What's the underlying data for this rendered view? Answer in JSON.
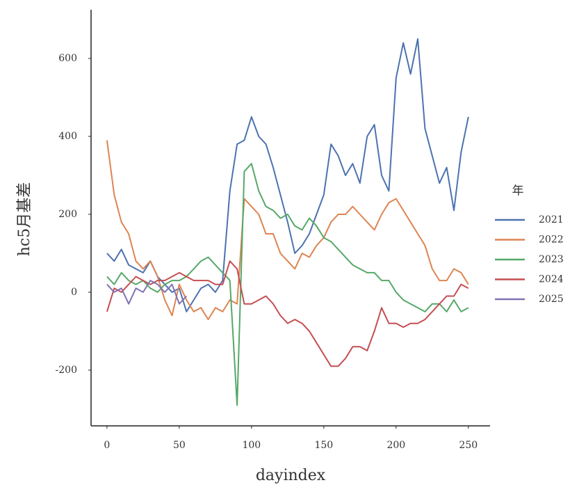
{
  "chart_data": {
    "type": "line",
    "x_label": "dayindex",
    "y_label": "hc5月基差",
    "legend_title": "年",
    "legend": "right",
    "grid": false,
    "xlim": [
      -11,
      265
    ],
    "ylim": [
      -343,
      725
    ],
    "xticks": [
      0,
      50,
      100,
      150,
      200,
      250
    ],
    "yticks": [
      -200,
      0,
      200,
      400,
      600
    ],
    "x": [
      0,
      5,
      10,
      15,
      20,
      25,
      30,
      35,
      40,
      45,
      50,
      55,
      60,
      65,
      70,
      75,
      80,
      85,
      90,
      95,
      100,
      105,
      110,
      115,
      120,
      125,
      130,
      135,
      140,
      145,
      150,
      155,
      160,
      165,
      170,
      175,
      180,
      185,
      190,
      195,
      200,
      205,
      210,
      215,
      220,
      225,
      230,
      235,
      240,
      245,
      250
    ],
    "series": [
      {
        "name": "2021",
        "color": "#4c72b0",
        "values": [
          100,
          80,
          110,
          70,
          60,
          50,
          80,
          40,
          20,
          0,
          10,
          -50,
          -20,
          10,
          20,
          0,
          30,
          260,
          380,
          390,
          450,
          400,
          380,
          320,
          250,
          180,
          100,
          120,
          150,
          200,
          250,
          380,
          350,
          300,
          330,
          280,
          400,
          430,
          300,
          260,
          550,
          640,
          560,
          650,
          420,
          350,
          280,
          320,
          210,
          360,
          450
        ]
      },
      {
        "name": "2022",
        "color": "#dd8452",
        "values": [
          390,
          250,
          180,
          150,
          80,
          60,
          80,
          40,
          -20,
          -60,
          20,
          -20,
          -50,
          -40,
          -70,
          -40,
          -50,
          -20,
          -30,
          240,
          220,
          200,
          150,
          150,
          100,
          80,
          60,
          100,
          90,
          120,
          140,
          180,
          200,
          200,
          220,
          200,
          180,
          160,
          200,
          230,
          240,
          210,
          180,
          150,
          120,
          60,
          30,
          30,
          60,
          50,
          20
        ]
      },
      {
        "name": "2023",
        "color": "#55a868",
        "values": [
          40,
          20,
          50,
          30,
          20,
          30,
          10,
          0,
          20,
          30,
          30,
          40,
          60,
          80,
          90,
          70,
          50,
          30,
          -290,
          310,
          330,
          260,
          220,
          210,
          190,
          200,
          170,
          160,
          190,
          170,
          140,
          130,
          110,
          90,
          70,
          60,
          50,
          50,
          30,
          30,
          0,
          -20,
          -30,
          -40,
          -50,
          -30,
          -30,
          -50,
          -20,
          -50,
          -40
        ]
      },
      {
        "name": "2024",
        "color": "#c44e52",
        "values": [
          -50,
          10,
          0,
          20,
          40,
          30,
          20,
          30,
          30,
          40,
          50,
          40,
          30,
          30,
          30,
          20,
          20,
          80,
          60,
          -30,
          -30,
          -20,
          -10,
          -30,
          -60,
          -80,
          -70,
          -80,
          -100,
          -130,
          -160,
          -190,
          -190,
          -170,
          -140,
          -140,
          -150,
          -100,
          -40,
          -80,
          -80,
          -90,
          -80,
          -80,
          -70,
          -50,
          -30,
          -10,
          -10,
          20,
          10
        ]
      },
      {
        "name": "2025",
        "color": "#8172b3",
        "values": [
          20,
          0,
          10,
          -30,
          10,
          0,
          30,
          20,
          0,
          20,
          -30,
          -10,
          null,
          null,
          null,
          null,
          null,
          null,
          null,
          null,
          null,
          null,
          null,
          null,
          null,
          null,
          null,
          null,
          null,
          null,
          null,
          null,
          null,
          null,
          null,
          null,
          null,
          null,
          null,
          null,
          null,
          null,
          null,
          null,
          null,
          null,
          null,
          null,
          null,
          null,
          null
        ]
      }
    ]
  }
}
